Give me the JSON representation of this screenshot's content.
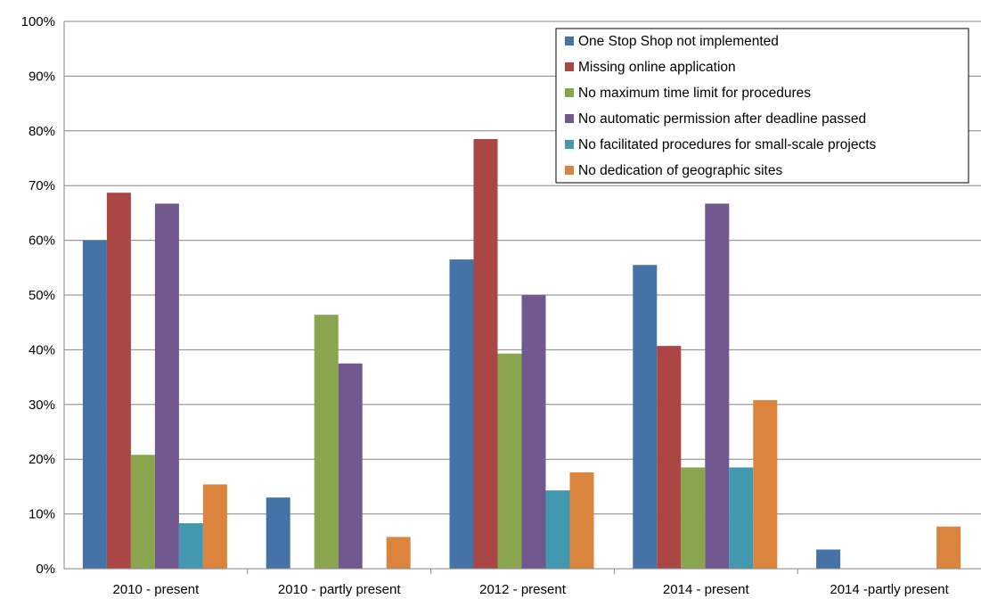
{
  "chart_data": {
    "type": "bar",
    "categories": [
      "2010 - present",
      "2010 - partly present",
      "2012 - present",
      "2014 - present",
      "2014 -partly present"
    ],
    "series": [
      {
        "name": "One Stop Shop not implemented",
        "color": "#4572A7",
        "values": [
          60,
          13,
          56.5,
          55.5,
          3.5
        ]
      },
      {
        "name": "Missing online application",
        "color": "#AA4643",
        "values": [
          68.7,
          0,
          78.5,
          40.7,
          0
        ]
      },
      {
        "name": "No maximum time limit for procedures",
        "color": "#89A54E",
        "values": [
          20.8,
          46.4,
          39.3,
          18.5,
          0
        ]
      },
      {
        "name": "No automatic permission after deadline passed",
        "color": "#71588F",
        "values": [
          66.7,
          37.5,
          50,
          66.7,
          0
        ]
      },
      {
        "name": "No facilitated procedures for small-scale projects",
        "color": "#4198AF",
        "values": [
          8.3,
          0,
          14.3,
          18.5,
          0
        ]
      },
      {
        "name": "No dedication of geographic sites",
        "color": "#DB843D",
        "values": [
          15.4,
          5.8,
          17.6,
          30.8,
          7.7
        ]
      }
    ],
    "ylim": [
      0,
      100
    ],
    "y_ticks": [
      "0%",
      "10%",
      "20%",
      "30%",
      "40%",
      "50%",
      "60%",
      "70%",
      "80%",
      "90%",
      "100%"
    ],
    "grid": true,
    "legend_position": "top-right",
    "title": "",
    "xlabel": "",
    "ylabel": ""
  }
}
